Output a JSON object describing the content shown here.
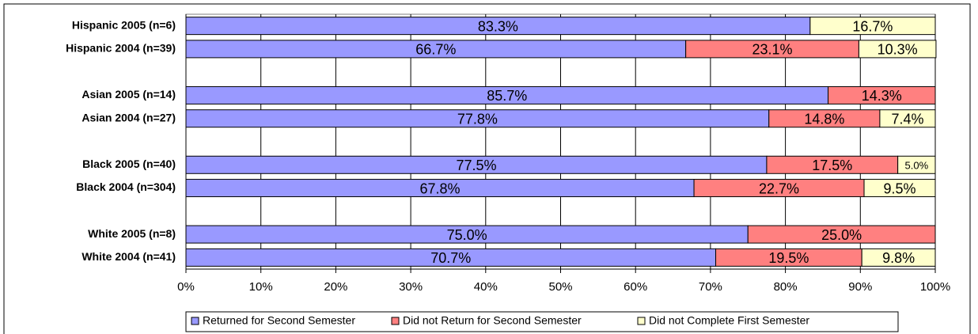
{
  "chart_data": {
    "type": "stacked-bar-horizontal",
    "categories": [
      "Hispanic 2005 (n=6)",
      "Hispanic 2004 (n=39)",
      null,
      "Asian 2005 (n=14)",
      "Asian 2004 (n=27)",
      null,
      "Black 2005 (n=40)",
      "Black 2004 (n=304)",
      null,
      "White 2005 (n=8)",
      "White 2004 (n=41)"
    ],
    "series": [
      {
        "name": "Returned for Second Semester",
        "color": "#9999ff",
        "values": [
          83.3,
          66.7,
          null,
          85.7,
          77.8,
          null,
          77.5,
          67.8,
          null,
          75.0,
          70.7
        ],
        "value_labels": [
          "83.3%",
          "66.7%",
          null,
          "85.7%",
          "77.8%",
          null,
          "77.5%",
          "67.8%",
          null,
          "75.0%",
          "70.7%"
        ]
      },
      {
        "name": "Did not Return for Second Semester",
        "color": "#ff8080",
        "values": [
          null,
          23.1,
          null,
          14.3,
          14.8,
          null,
          17.5,
          22.7,
          null,
          25.0,
          19.5
        ],
        "value_labels": [
          null,
          "23.1%",
          null,
          "14.3%",
          "14.8%",
          null,
          "17.5%",
          "22.7%",
          null,
          "25.0%",
          "19.5%"
        ]
      },
      {
        "name": "Did not Complete First Semester",
        "color": "#ffffcc",
        "values": [
          16.7,
          10.3,
          null,
          null,
          7.4,
          null,
          5.0,
          9.5,
          null,
          null,
          9.8
        ],
        "value_labels": [
          "16.7%",
          "10.3%",
          null,
          null,
          "7.4%",
          null,
          "5.0%",
          "9.5%",
          null,
          null,
          "9.8%"
        ]
      }
    ],
    "xlim": [
      0,
      100
    ],
    "xticks": [
      {
        "value": 0,
        "label": "0%"
      },
      {
        "value": 10,
        "label": "10%"
      },
      {
        "value": 20,
        "label": "20%"
      },
      {
        "value": 30,
        "label": "30%"
      },
      {
        "value": 40,
        "label": "40%"
      },
      {
        "value": 50,
        "label": "50%"
      },
      {
        "value": 60,
        "label": "60%"
      },
      {
        "value": 70,
        "label": "70%"
      },
      {
        "value": 80,
        "label": "80%"
      },
      {
        "value": 90,
        "label": "90%"
      },
      {
        "value": 100,
        "label": "100%"
      }
    ],
    "grid": true,
    "legend": "bottom"
  }
}
